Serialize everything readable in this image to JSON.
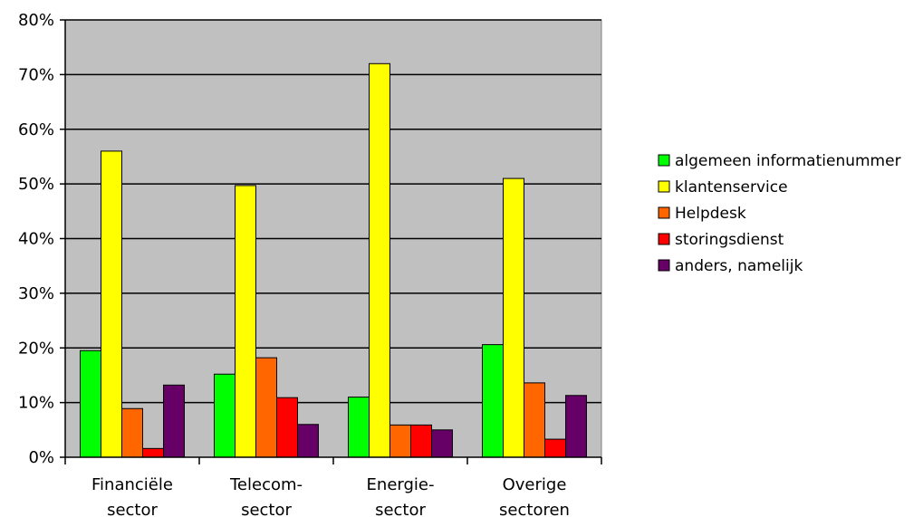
{
  "chart_data": {
    "type": "bar",
    "categories": [
      [
        "Financiële",
        "sector"
      ],
      [
        "Telecom-",
        "sector"
      ],
      [
        "Energie-",
        "sector"
      ],
      [
        "Overige",
        "sectoren"
      ]
    ],
    "series": [
      {
        "name": "algemeen informatienummer",
        "color": "#00ff00",
        "values": [
          19.5,
          15.2,
          11.0,
          20.6
        ]
      },
      {
        "name": "klantenservice",
        "color": "#ffff00",
        "values": [
          56.0,
          49.7,
          72.0,
          51.0
        ]
      },
      {
        "name": "Helpdesk",
        "color": "#ff6600",
        "values": [
          8.9,
          18.2,
          5.9,
          13.6
        ]
      },
      {
        "name": "storingsdienst",
        "color": "#ff0000",
        "values": [
          1.6,
          10.9,
          5.9,
          3.3
        ]
      },
      {
        "name": "anders, namelijk",
        "color": "#660066",
        "values": [
          13.2,
          6.0,
          5.0,
          11.3
        ]
      }
    ],
    "ylim": [
      0,
      80
    ],
    "yticks": [
      "0%",
      "10%",
      "20%",
      "30%",
      "40%",
      "50%",
      "60%",
      "70%",
      "80%"
    ],
    "grid": true,
    "plot_background": "#c0c0c0",
    "legend_position": "right"
  }
}
